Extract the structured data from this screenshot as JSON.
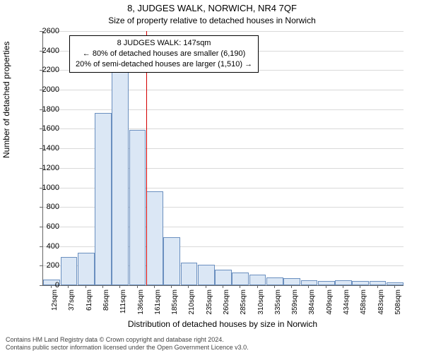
{
  "title_main": "8, JUDGES WALK, NORWICH, NR4 7QF",
  "title_sub": "Size of property relative to detached houses in Norwich",
  "ylabel": "Number of detached properties",
  "xlabel": "Distribution of detached houses by size in Norwich",
  "chart": {
    "type": "histogram",
    "background_color": "#ffffff",
    "grid_color": "#d9d9d9",
    "bar_fill": "#dbe7f5",
    "bar_border": "#6a8fbf",
    "ylim": [
      0,
      2600
    ],
    "ytick_step": 200,
    "yticks": [
      0,
      200,
      400,
      600,
      800,
      1000,
      1200,
      1400,
      1600,
      1800,
      2000,
      2200,
      2400,
      2600
    ],
    "x_categories": [
      "12sqm",
      "37sqm",
      "61sqm",
      "86sqm",
      "111sqm",
      "136sqm",
      "161sqm",
      "185sqm",
      "210sqm",
      "235sqm",
      "260sqm",
      "285sqm",
      "310sqm",
      "335sqm",
      "359sqm",
      "384sqm",
      "409sqm",
      "434sqm",
      "458sqm",
      "483sqm",
      "508sqm"
    ],
    "values": [
      60,
      290,
      330,
      1760,
      2200,
      1590,
      960,
      490,
      230,
      210,
      160,
      130,
      110,
      80,
      70,
      50,
      40,
      50,
      40,
      40,
      30
    ],
    "reference_line": {
      "x_index": 5.5,
      "color": "#d40000"
    },
    "annotation": {
      "lines": [
        "8 JUDGES WALK: 147sqm",
        "← 80% of detached houses are smaller (6,190)",
        "20% of semi-detached houses are larger (1,510) →"
      ],
      "border_color": "#000000",
      "bg_color": "#ffffff",
      "font_size": 11
    }
  },
  "footer": {
    "line1": "Contains HM Land Registry data © Crown copyright and database right 2024.",
    "line2": "Contains public sector information licensed under the Open Government Licence v3.0."
  }
}
